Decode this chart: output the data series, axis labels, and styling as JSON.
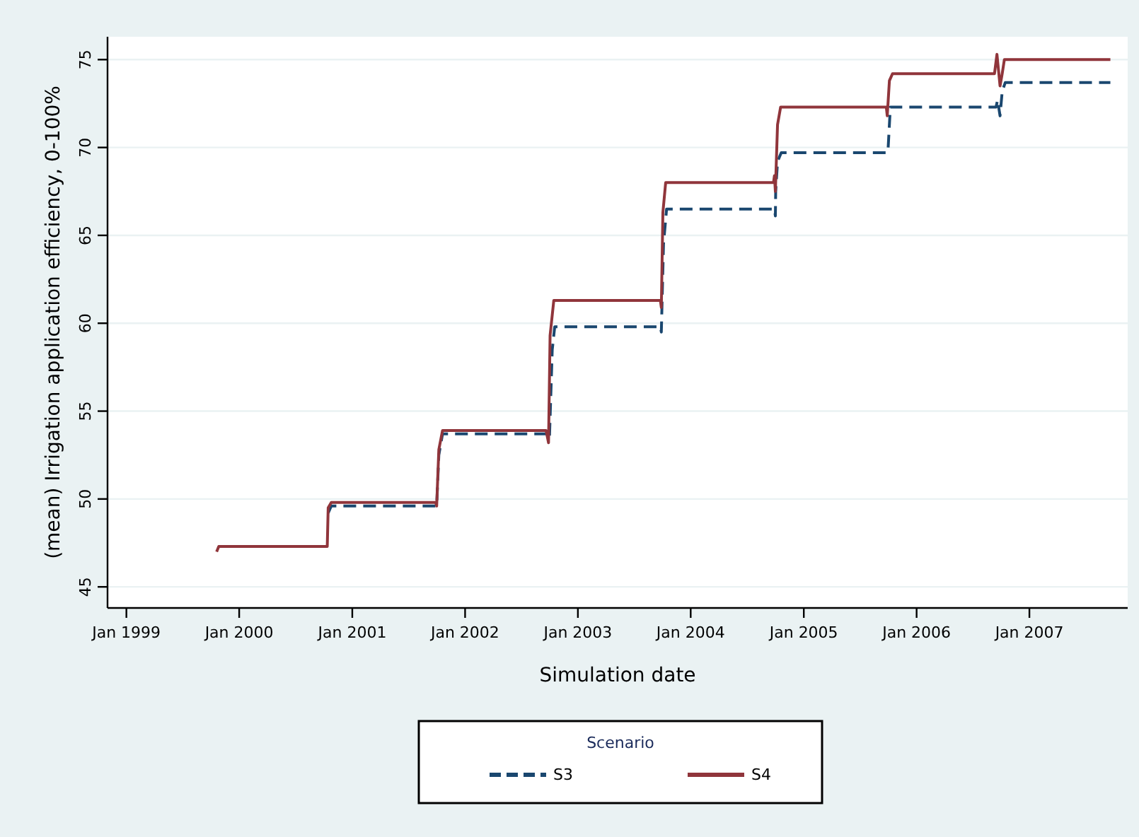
{
  "chart_data": {
    "type": "line",
    "xlabel": "Simulation date",
    "ylabel": "(mean) Irrigation application efficiency, 0-100%",
    "legend_title": "Scenario",
    "legend": "bottom",
    "grid": "y",
    "xlim": [
      "1998-11-01",
      "2007-11-15"
    ],
    "xticks": [
      {
        "value": "1999-01-01",
        "label": "Jan 1999"
      },
      {
        "value": "2000-01-01",
        "label": "Jan 2000"
      },
      {
        "value": "2001-01-01",
        "label": "Jan 2001"
      },
      {
        "value": "2002-01-01",
        "label": "Jan 2002"
      },
      {
        "value": "2003-01-01",
        "label": "Jan 2003"
      },
      {
        "value": "2004-01-01",
        "label": "Jan 2004"
      },
      {
        "value": "2005-01-01",
        "label": "Jan 2005"
      },
      {
        "value": "2006-01-01",
        "label": "Jan 2006"
      },
      {
        "value": "2007-01-01",
        "label": "Jan 2007"
      }
    ],
    "ylim": [
      43.8,
      76.3
    ],
    "yticks": [
      45,
      50,
      55,
      60,
      65,
      70,
      75
    ],
    "series": [
      {
        "name": "S3",
        "color": "#1a476f",
        "line_style": "dashed",
        "x": [
          "2000-10-15",
          "2000-10-25",
          "2001-10-01",
          "2001-10-08",
          "2001-10-20",
          "2002-09-28",
          "2002-10-01",
          "2002-10-10",
          "2002-10-18",
          "2003-09-25",
          "2003-09-28",
          "2003-10-05",
          "2003-10-15",
          "2004-09-28",
          "2004-10-01",
          "2004-10-02",
          "2004-10-08",
          "2004-10-20",
          "2005-09-28",
          "2005-10-01",
          "2005-10-08",
          "2006-09-15",
          "2006-09-20",
          "2006-09-28",
          "2006-10-05",
          "2006-10-15",
          "2007-09-20"
        ],
        "values": [
          49.2,
          49.6,
          49.6,
          52.5,
          53.7,
          53.7,
          53.5,
          58.5,
          59.8,
          59.8,
          59.5,
          64.5,
          66.5,
          66.5,
          66.1,
          67.5,
          69.2,
          69.7,
          69.7,
          70.0,
          72.3,
          72.3,
          72.7,
          71.8,
          73.2,
          73.7,
          73.7
        ]
      },
      {
        "name": "S4",
        "color": "#90353b",
        "line_style": "solid",
        "x": [
          "1999-10-20",
          "1999-10-27",
          "2000-10-12",
          "2000-10-15",
          "2000-10-25",
          "2001-09-28",
          "2001-10-01",
          "2001-10-08",
          "2001-10-20",
          "2002-09-20",
          "2002-09-28",
          "2002-10-03",
          "2002-10-15",
          "2003-09-25",
          "2003-09-28",
          "2003-10-03",
          "2003-10-12",
          "2004-09-25",
          "2004-09-28",
          "2004-10-01",
          "2004-10-08",
          "2004-10-18",
          "2005-09-25",
          "2005-09-28",
          "2005-10-05",
          "2005-10-15",
          "2006-09-10",
          "2006-09-18",
          "2006-09-28",
          "2006-10-05",
          "2006-10-12",
          "2007-09-20"
        ],
        "values": [
          47.0,
          47.3,
          47.3,
          49.5,
          49.8,
          49.8,
          49.6,
          52.8,
          53.9,
          53.9,
          53.2,
          59.3,
          61.3,
          61.3,
          60.9,
          66.3,
          68.0,
          68.0,
          68.4,
          67.5,
          71.3,
          72.3,
          72.3,
          71.8,
          73.8,
          74.2,
          74.2,
          75.3,
          73.5,
          74.2,
          75.0,
          75.0
        ]
      }
    ]
  }
}
